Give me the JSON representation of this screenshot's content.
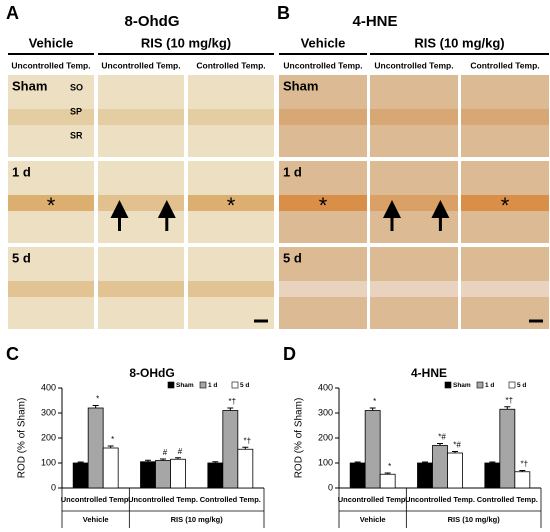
{
  "panels": [
    {
      "label": "A",
      "title": "8-OhdG",
      "groups": [
        "Vehicle",
        "RIS (10 mg/kg)"
      ],
      "columns": [
        "Uncontrolled Temp.",
        "Uncontrolled Temp.",
        "Controlled Temp."
      ],
      "rows": [
        "Sham",
        "1 d",
        "5 d"
      ],
      "layers": [
        "SO",
        "SP",
        "SR"
      ],
      "marker": "*"
    },
    {
      "label": "B",
      "title": "4-HNE",
      "groups": [
        "Vehicle",
        "RIS (10 mg/kg)"
      ],
      "columns": [
        "Uncontrolled Temp.",
        "Uncontrolled Temp.",
        "Controlled Temp."
      ],
      "rows": [
        "Sham",
        "1 d",
        "5 d"
      ],
      "marker": "*"
    }
  ],
  "chart_data": [
    {
      "type": "bar",
      "label": "C",
      "title": "8-OHdG",
      "y_label": "ROD (% of Sham)",
      "categories": [
        "Uncontrolled Temp.",
        "Uncontrolled Temp.",
        "Controlled Temp."
      ],
      "group_labels": [
        "Vehicle",
        "RIS (10 mg/kg)"
      ],
      "ylim": [
        0,
        400
      ],
      "yticks": [
        0,
        100,
        200,
        300,
        400
      ],
      "legend": "top-right",
      "series": [
        {
          "name": "Sham",
          "color": "#000000",
          "values": [
            100,
            105,
            100
          ],
          "errors": [
            4,
            6,
            5
          ],
          "annotations": [
            null,
            null,
            null
          ]
        },
        {
          "name": "1 d",
          "color": "#a6a6a6",
          "values": [
            320,
            110,
            310
          ],
          "errors": [
            10,
            6,
            10
          ],
          "annotations": [
            "*",
            "#",
            "*†"
          ]
        },
        {
          "name": "5 d",
          "color": "#ffffff",
          "values": [
            160,
            115,
            155
          ],
          "errors": [
            8,
            6,
            8
          ],
          "annotations": [
            "*",
            "#",
            "*†"
          ]
        }
      ]
    },
    {
      "type": "bar",
      "label": "D",
      "title": "4-HNE",
      "y_label": "ROD (% of Sham)",
      "categories": [
        "Uncontrolled Temp.",
        "Uncontrolled Temp.",
        "Controlled Temp."
      ],
      "group_labels": [
        "Vehicle",
        "RIS (10 mg/kg)"
      ],
      "ylim": [
        0,
        400
      ],
      "yticks": [
        0,
        100,
        200,
        300,
        400
      ],
      "legend": "top-right",
      "series": [
        {
          "name": "Sham",
          "color": "#000000",
          "values": [
            100,
            100,
            100
          ],
          "errors": [
            4,
            4,
            4
          ],
          "annotations": [
            null,
            null,
            null
          ]
        },
        {
          "name": "1 d",
          "color": "#a6a6a6",
          "values": [
            310,
            170,
            315
          ],
          "errors": [
            10,
            8,
            10
          ],
          "annotations": [
            "*",
            "*#",
            "*†"
          ]
        },
        {
          "name": "5 d",
          "color": "#ffffff",
          "values": [
            55,
            140,
            65
          ],
          "errors": [
            5,
            6,
            5
          ],
          "annotations": [
            "*",
            "*#",
            "*†"
          ]
        }
      ]
    }
  ]
}
